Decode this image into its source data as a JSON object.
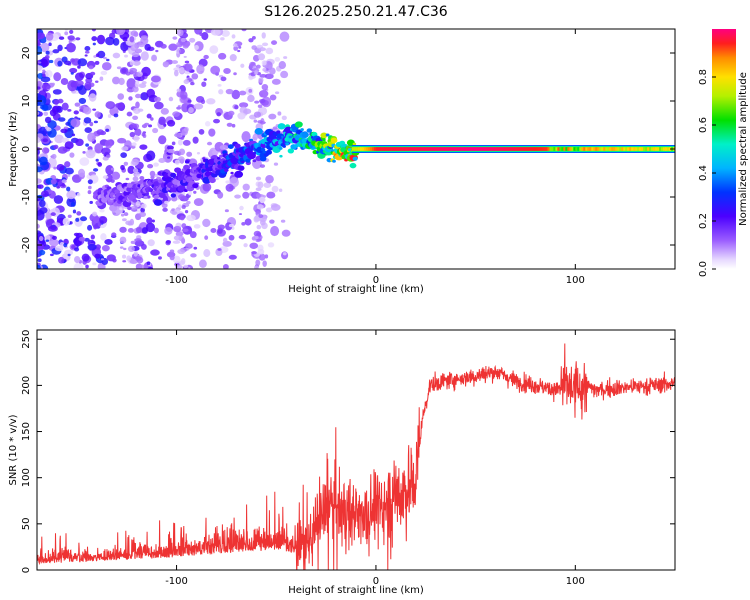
{
  "title": "S126.2025.250.21.47.C36",
  "chart_data": [
    {
      "type": "heatmap",
      "panel": "top",
      "xlabel": "Height of straight line (km)",
      "ylabel": "Frequency (Hz)",
      "xlim": [
        -170,
        150
      ],
      "ylim": [
        -25,
        25
      ],
      "xticks": [
        -100,
        0,
        100
      ],
      "yticks": [
        -20,
        -10,
        0,
        10,
        20
      ],
      "colorbar": {
        "label": "Normalized spectral amplitude",
        "range": [
          0,
          1
        ],
        "ticks": [
          0.0,
          0.2,
          0.4,
          0.6,
          0.8
        ]
      },
      "ridge": {
        "description_points_x_km": [
          -130,
          -110,
          -90,
          -70,
          -55,
          -40,
          -30,
          -20,
          -10,
          0,
          50,
          100,
          150
        ],
        "frequency_hz": [
          -10,
          -8,
          -5,
          -2,
          1,
          3,
          1,
          0,
          -1,
          0,
          0,
          0,
          0
        ],
        "amplitude": [
          0.15,
          0.2,
          0.2,
          0.3,
          0.35,
          0.45,
          0.5,
          0.7,
          0.75,
          0.95,
          1.0,
          0.9,
          0.8
        ]
      }
    },
    {
      "type": "line",
      "panel": "bottom",
      "xlabel": "Height of straight line (km)",
      "ylabel": "SNR (10 * v/v)",
      "xlim": [
        -170,
        150
      ],
      "ylim": [
        0,
        260
      ],
      "xticks": [
        -100,
        0,
        100
      ],
      "yticks": [
        0,
        50,
        100,
        150,
        200,
        250
      ],
      "color": "#ee3333",
      "series": [
        {
          "name": "SNR",
          "x": [
            -170,
            -150,
            -130,
            -110,
            -90,
            -70,
            -50,
            -35,
            -28,
            -22,
            -15,
            -8,
            0,
            8,
            15,
            20,
            23,
            27,
            35,
            50,
            60,
            70,
            80,
            90,
            95,
            100,
            105,
            110,
            125,
            140,
            150
          ],
          "y": [
            10,
            12,
            15,
            18,
            22,
            28,
            30,
            25,
            55,
            70,
            62,
            60,
            68,
            80,
            88,
            95,
            160,
            200,
            205,
            210,
            215,
            205,
            200,
            195,
            200,
            195,
            200,
            195,
            198,
            200,
            203
          ]
        }
      ]
    }
  ]
}
